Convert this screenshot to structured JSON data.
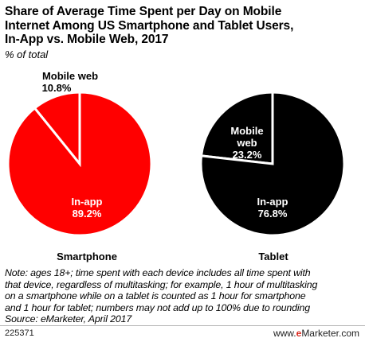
{
  "header": {
    "title_lines": [
      "Share of Average Time Spent per Day on Mobile",
      "Internet Among US Smartphone and Tablet Users,",
      "In-App vs. Mobile Web, 2017"
    ],
    "subtitle": "% of total"
  },
  "colors": {
    "smartphone": "#ff0000",
    "tablet": "#000000",
    "separator": "#ffffff"
  },
  "chart_data": [
    {
      "type": "pie",
      "name": "Smartphone",
      "categories": [
        "Mobile web",
        "In-app"
      ],
      "values": [
        10.8,
        89.2
      ],
      "labels": [
        "10.8%",
        "89.2%"
      ]
    },
    {
      "type": "pie",
      "name": "Tablet",
      "categories": [
        "Mobile web",
        "In-app"
      ],
      "values": [
        23.2,
        76.8
      ],
      "labels": [
        "23.2%",
        "76.8%"
      ]
    }
  ],
  "note": {
    "lines": [
      "Note: ages 18+; time spent with each device includes all time spent with",
      "that device, regardless of multitasking; for example, 1 hour of multitasking",
      "on a smartphone while on a tablet is counted as 1 hour for smartphone",
      "and 1 hour for tablet; numbers may not add up to 100% due to rounding",
      "Source: eMarketer, April 2017"
    ]
  },
  "footer": {
    "chart_id": "225371",
    "brand_prefix": "www.",
    "brand_e": "e",
    "brand_rest": "Marketer.com"
  }
}
